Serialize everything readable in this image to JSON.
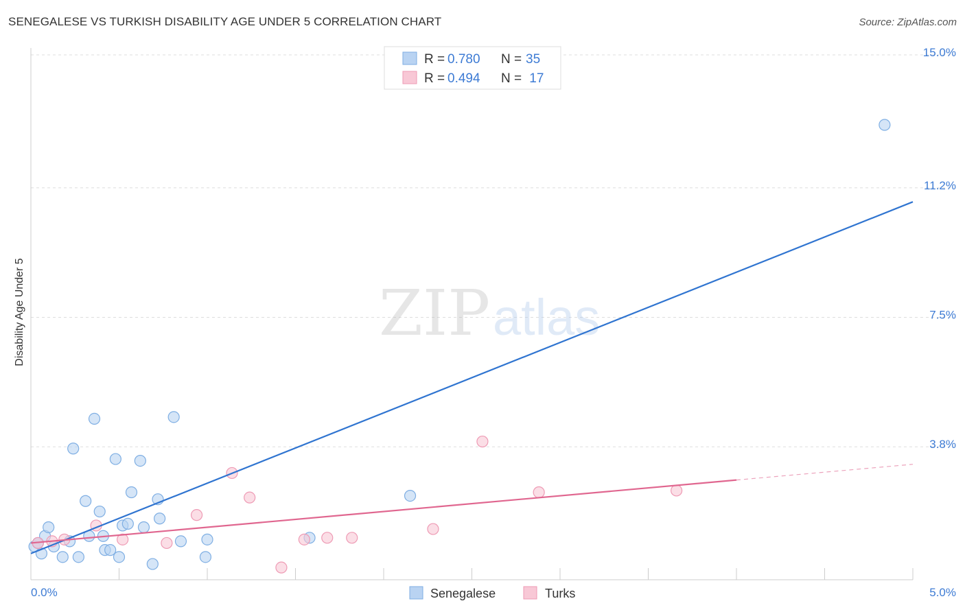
{
  "title": "SENEGALESE VS TURKISH DISABILITY AGE UNDER 5 CORRELATION CHART",
  "source": "Source: ZipAtlas.com",
  "watermark": {
    "zip": "ZIP",
    "atlas": "atlas"
  },
  "colors": {
    "blue_fill": "#b9d3f2",
    "blue_stroke": "#7eaee3",
    "blue_line": "#2f74d0",
    "pink_fill": "#f8c8d6",
    "pink_stroke": "#ee9ab4",
    "pink_line": "#e0668f",
    "axis_text": "#3d7bd4",
    "grid": "#dddddd"
  },
  "legend": {
    "items": [
      {
        "r_label": "R = ",
        "r_value": "0.780",
        "n_label": "N = ",
        "n_value": "35"
      },
      {
        "r_label": "R = ",
        "r_value": "0.494",
        "n_label": "N = ",
        "n_value": " 17"
      }
    ]
  },
  "bottom_legend": [
    "Senegalese",
    "Turks"
  ],
  "chart_data": {
    "type": "scatter",
    "xlabel": "",
    "ylabel": "Disability Age Under 5",
    "xlim": [
      0,
      5.0
    ],
    "ylim": [
      0,
      15.0
    ],
    "x_tick_labels": [
      {
        "value": 0,
        "label": "0.0%"
      },
      {
        "value": 5.0,
        "label": "5.0%"
      }
    ],
    "y_tick_labels": [
      {
        "value": 3.8,
        "label": "3.8%"
      },
      {
        "value": 7.5,
        "label": "7.5%"
      },
      {
        "value": 11.2,
        "label": "11.2%"
      },
      {
        "value": 15.0,
        "label": "15.0%"
      }
    ],
    "y_gridlines": [
      3.8,
      7.5,
      11.2,
      15.0
    ],
    "legend_position": "top-center",
    "series": [
      {
        "name": "Senegalese",
        "r": 0.78,
        "n": 35,
        "points": [
          [
            0.02,
            0.95
          ],
          [
            0.04,
            1.05
          ],
          [
            0.06,
            0.75
          ],
          [
            0.08,
            1.25
          ],
          [
            0.1,
            1.5
          ],
          [
            0.13,
            0.95
          ],
          [
            0.18,
            0.65
          ],
          [
            0.22,
            1.1
          ],
          [
            0.24,
            3.75
          ],
          [
            0.27,
            0.65
          ],
          [
            0.31,
            2.25
          ],
          [
            0.33,
            1.25
          ],
          [
            0.36,
            4.6
          ],
          [
            0.39,
            1.95
          ],
          [
            0.41,
            1.25
          ],
          [
            0.42,
            0.85
          ],
          [
            0.45,
            0.85
          ],
          [
            0.48,
            3.45
          ],
          [
            0.5,
            0.65
          ],
          [
            0.52,
            1.55
          ],
          [
            0.55,
            1.6
          ],
          [
            0.57,
            2.5
          ],
          [
            0.62,
            3.4
          ],
          [
            0.64,
            1.5
          ],
          [
            0.69,
            0.45
          ],
          [
            0.72,
            2.3
          ],
          [
            0.73,
            1.75
          ],
          [
            0.81,
            4.65
          ],
          [
            0.85,
            1.1
          ],
          [
            0.99,
            0.65
          ],
          [
            1.0,
            1.15
          ],
          [
            1.58,
            1.2
          ],
          [
            2.15,
            2.4
          ],
          [
            4.84,
            13.0
          ],
          [
            0.04,
            1.05
          ]
        ],
        "trend": {
          "x0": 0.0,
          "y0": 0.75,
          "x1": 5.0,
          "y1": 10.8
        }
      },
      {
        "name": "Turks",
        "r": 0.494,
        "n": 17,
        "points": [
          [
            0.04,
            1.05
          ],
          [
            0.12,
            1.1
          ],
          [
            0.19,
            1.15
          ],
          [
            0.37,
            1.55
          ],
          [
            0.52,
            1.15
          ],
          [
            0.77,
            1.05
          ],
          [
            0.94,
            1.85
          ],
          [
            1.14,
            3.05
          ],
          [
            1.24,
            2.35
          ],
          [
            1.42,
            0.35
          ],
          [
            1.55,
            1.15
          ],
          [
            1.68,
            1.2
          ],
          [
            1.82,
            1.2
          ],
          [
            2.28,
            1.45
          ],
          [
            2.56,
            3.95
          ],
          [
            2.88,
            2.5
          ],
          [
            3.66,
            2.55
          ]
        ],
        "trend": {
          "x0": 0.0,
          "y0": 1.05,
          "x1": 4.0,
          "y1": 2.85
        },
        "trend_dashed": {
          "x0": 4.0,
          "y0": 2.85,
          "x1": 5.0,
          "y1": 3.3
        }
      }
    ]
  }
}
